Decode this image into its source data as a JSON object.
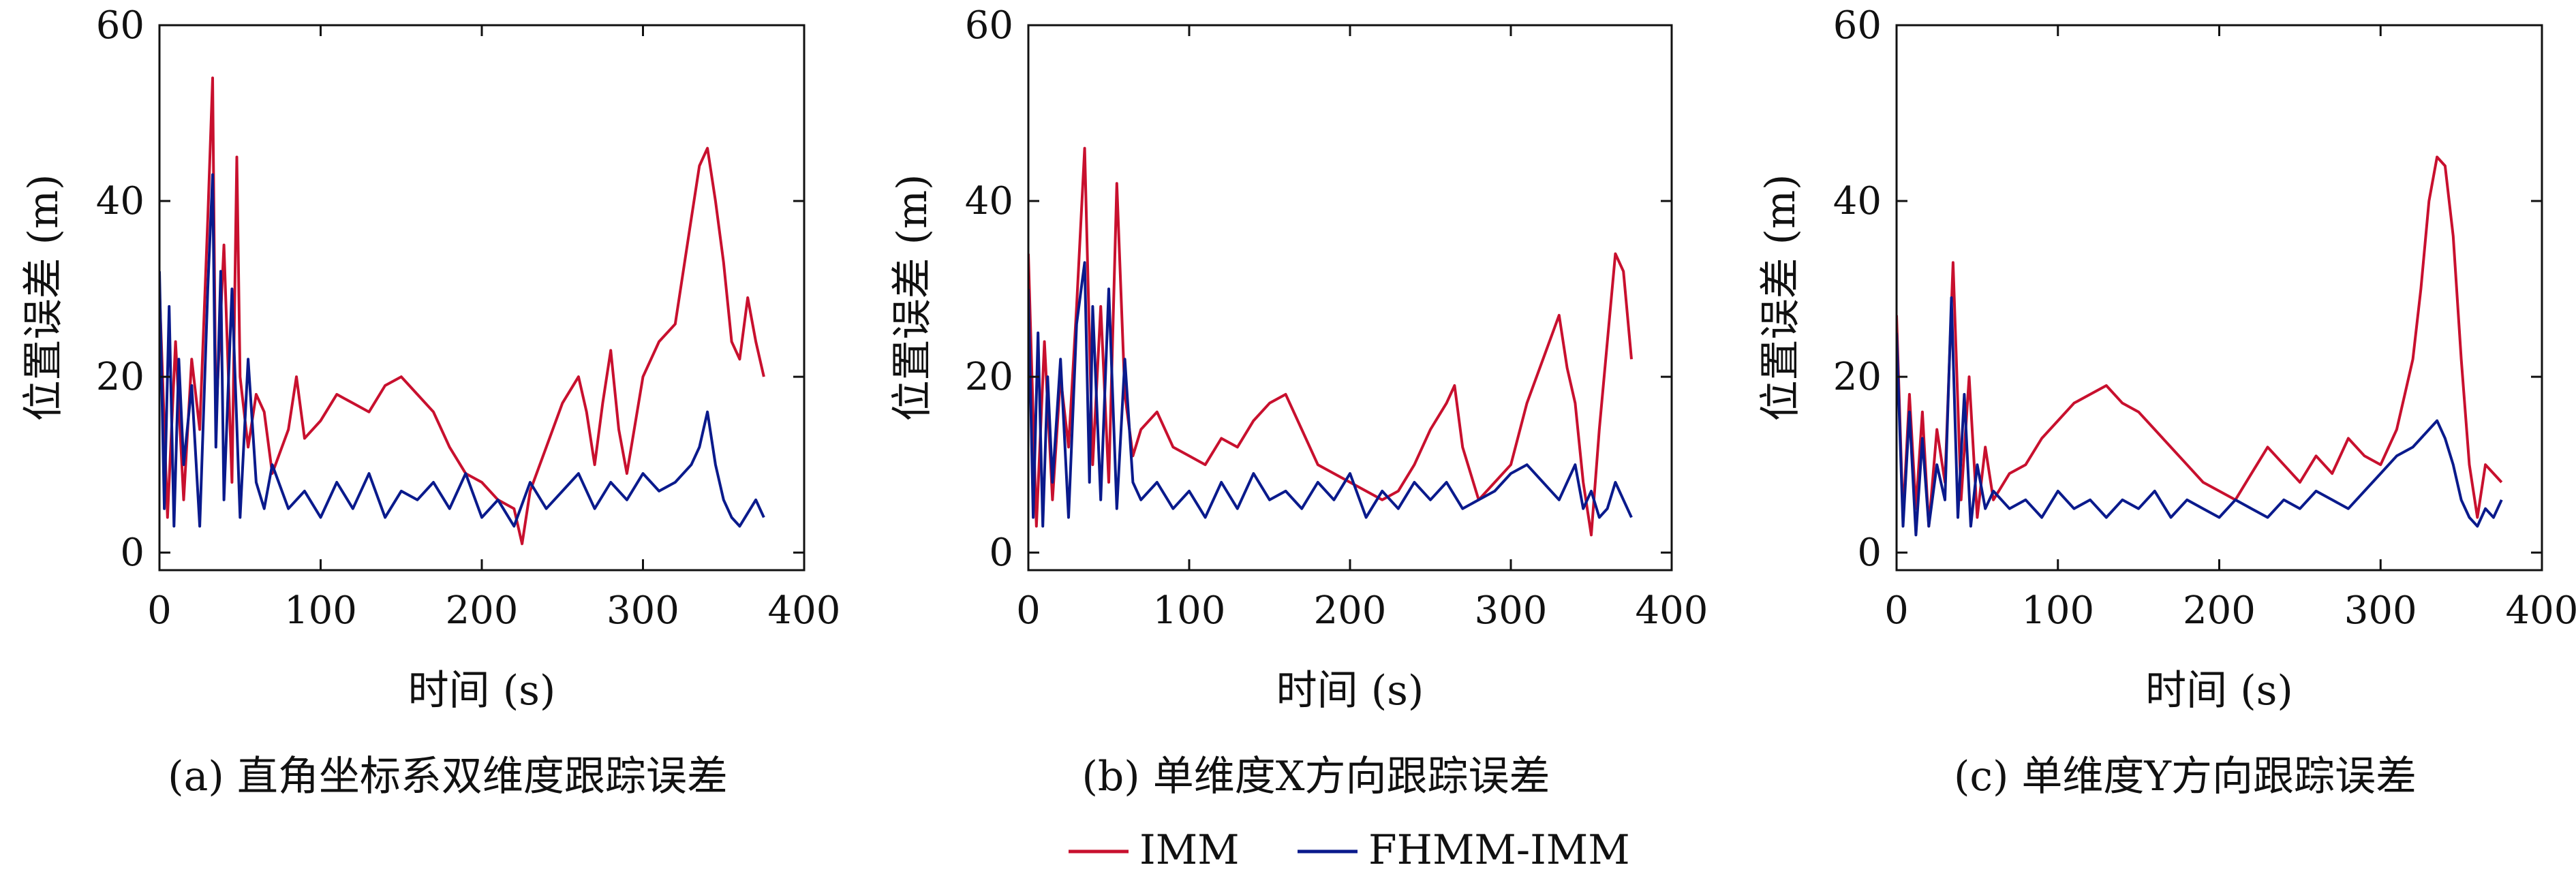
{
  "colors": {
    "IMM": "#c8102e",
    "FHMM-IMM": "#0a1a8c",
    "axis": "#111111"
  },
  "legend": {
    "placement": "bottom-center",
    "items": [
      {
        "name": "IMM",
        "color": "#c8102e"
      },
      {
        "name": "FHMM-IMM",
        "color": "#0a1a8c"
      }
    ]
  },
  "chart_data": [
    {
      "type": "line",
      "caption": "(a) 直角坐标系双维度跟踪误差",
      "xlabel": "时间 (s)",
      "ylabel": "位置误差 (m)",
      "xlim": [
        0,
        400
      ],
      "ylim": [
        -2,
        60
      ],
      "xticks": [
        0,
        100,
        200,
        300,
        400
      ],
      "yticks": [
        0,
        20,
        40,
        60
      ],
      "grid": false,
      "series": [
        {
          "name": "IMM",
          "x": [
            0,
            5,
            10,
            15,
            20,
            25,
            30,
            33,
            35,
            40,
            45,
            48,
            50,
            55,
            60,
            65,
            70,
            80,
            85,
            90,
            100,
            110,
            120,
            130,
            140,
            150,
            160,
            170,
            180,
            190,
            200,
            210,
            220,
            225,
            230,
            240,
            250,
            260,
            265,
            270,
            275,
            280,
            285,
            290,
            300,
            310,
            320,
            330,
            335,
            340,
            345,
            350,
            355,
            360,
            365,
            370,
            375
          ],
          "y": [
            30,
            4,
            24,
            6,
            22,
            14,
            38,
            54,
            15,
            35,
            8,
            45,
            20,
            12,
            18,
            16,
            9,
            14,
            20,
            13,
            15,
            18,
            17,
            16,
            19,
            20,
            18,
            16,
            12,
            9,
            8,
            6,
            5,
            1,
            7,
            12,
            17,
            20,
            16,
            10,
            17,
            23,
            14,
            9,
            20,
            24,
            26,
            38,
            44,
            46,
            40,
            33,
            24,
            22,
            29,
            24,
            20
          ]
        },
        {
          "name": "FHMM-IMM",
          "x": [
            0,
            3,
            6,
            9,
            12,
            15,
            20,
            25,
            30,
            33,
            35,
            38,
            40,
            45,
            50,
            55,
            60,
            65,
            70,
            80,
            90,
            100,
            110,
            120,
            130,
            140,
            150,
            160,
            170,
            180,
            190,
            200,
            210,
            220,
            230,
            240,
            250,
            260,
            270,
            280,
            290,
            300,
            310,
            320,
            330,
            335,
            340,
            345,
            350,
            355,
            360,
            370,
            375
          ],
          "y": [
            32,
            5,
            28,
            3,
            22,
            10,
            19,
            3,
            30,
            43,
            12,
            32,
            6,
            30,
            4,
            22,
            8,
            5,
            10,
            5,
            7,
            4,
            8,
            5,
            9,
            4,
            7,
            6,
            8,
            5,
            9,
            4,
            6,
            3,
            8,
            5,
            7,
            9,
            5,
            8,
            6,
            9,
            7,
            8,
            10,
            12,
            16,
            10,
            6,
            4,
            3,
            6,
            4
          ]
        }
      ]
    },
    {
      "type": "line",
      "caption": "(b) 单维度X方向跟踪误差",
      "xlabel": "时间 (s)",
      "ylabel": "位置误差 (m)",
      "xlim": [
        0,
        400
      ],
      "ylim": [
        -2,
        60
      ],
      "xticks": [
        0,
        100,
        200,
        300,
        400
      ],
      "yticks": [
        0,
        20,
        40,
        60
      ],
      "grid": false,
      "series": [
        {
          "name": "IMM",
          "x": [
            0,
            5,
            10,
            15,
            20,
            25,
            30,
            35,
            40,
            45,
            50,
            55,
            60,
            65,
            70,
            80,
            90,
            100,
            110,
            120,
            130,
            140,
            150,
            160,
            170,
            180,
            190,
            200,
            210,
            220,
            230,
            240,
            250,
            260,
            265,
            270,
            280,
            290,
            300,
            310,
            320,
            330,
            335,
            340,
            345,
            350,
            355,
            360,
            365,
            370,
            375
          ],
          "y": [
            34,
            3,
            24,
            6,
            20,
            12,
            28,
            46,
            10,
            28,
            8,
            42,
            18,
            11,
            14,
            16,
            12,
            11,
            10,
            13,
            12,
            15,
            17,
            18,
            14,
            10,
            9,
            8,
            7,
            6,
            7,
            10,
            14,
            17,
            19,
            12,
            6,
            8,
            10,
            17,
            22,
            27,
            21,
            17,
            8,
            2,
            14,
            24,
            34,
            32,
            22
          ]
        },
        {
          "name": "FHMM-IMM",
          "x": [
            0,
            3,
            6,
            9,
            12,
            15,
            20,
            25,
            30,
            35,
            38,
            40,
            45,
            50,
            55,
            60,
            65,
            70,
            80,
            90,
            100,
            110,
            120,
            130,
            140,
            150,
            160,
            170,
            180,
            190,
            200,
            210,
            220,
            230,
            240,
            250,
            260,
            270,
            280,
            290,
            300,
            310,
            320,
            330,
            340,
            345,
            350,
            355,
            360,
            365,
            370,
            375
          ],
          "y": [
            30,
            4,
            25,
            3,
            20,
            8,
            22,
            4,
            26,
            33,
            8,
            28,
            6,
            30,
            5,
            22,
            8,
            6,
            8,
            5,
            7,
            4,
            8,
            5,
            9,
            6,
            7,
            5,
            8,
            6,
            9,
            4,
            7,
            5,
            8,
            6,
            8,
            5,
            6,
            7,
            9,
            10,
            8,
            6,
            10,
            5,
            7,
            4,
            5,
            8,
            6,
            4
          ]
        }
      ]
    },
    {
      "type": "line",
      "caption": "(c) 单维度Y方向跟踪误差",
      "xlabel": "时间 (s)",
      "ylabel": "位置误差 (m)",
      "xlim": [
        0,
        400
      ],
      "ylim": [
        -2,
        60
      ],
      "xticks": [
        0,
        100,
        200,
        300,
        400
      ],
      "yticks": [
        0,
        20,
        40,
        60
      ],
      "grid": false,
      "series": [
        {
          "name": "IMM",
          "x": [
            0,
            4,
            8,
            12,
            16,
            20,
            25,
            30,
            35,
            40,
            45,
            50,
            55,
            60,
            70,
            80,
            90,
            100,
            110,
            120,
            130,
            140,
            150,
            160,
            170,
            180,
            190,
            200,
            210,
            220,
            230,
            240,
            250,
            260,
            270,
            280,
            290,
            300,
            310,
            315,
            320,
            325,
            330,
            335,
            340,
            345,
            350,
            355,
            360,
            365,
            370,
            375
          ],
          "y": [
            27,
            4,
            18,
            5,
            16,
            3,
            14,
            8,
            33,
            6,
            20,
            4,
            12,
            6,
            9,
            10,
            13,
            15,
            17,
            18,
            19,
            17,
            16,
            14,
            12,
            10,
            8,
            7,
            6,
            9,
            12,
            10,
            8,
            11,
            9,
            13,
            11,
            10,
            14,
            18,
            22,
            30,
            40,
            45,
            44,
            36,
            22,
            10,
            4,
            10,
            9,
            8
          ]
        },
        {
          "name": "FHMM-IMM",
          "x": [
            0,
            4,
            8,
            12,
            16,
            20,
            25,
            30,
            34,
            38,
            42,
            46,
            50,
            55,
            60,
            70,
            80,
            90,
            100,
            110,
            120,
            130,
            140,
            150,
            160,
            170,
            180,
            190,
            200,
            210,
            220,
            230,
            240,
            250,
            260,
            270,
            280,
            290,
            300,
            310,
            320,
            330,
            335,
            340,
            345,
            350,
            355,
            360,
            365,
            370,
            375
          ],
          "y": [
            25,
            3,
            16,
            2,
            13,
            3,
            10,
            6,
            29,
            4,
            18,
            3,
            10,
            5,
            7,
            5,
            6,
            4,
            7,
            5,
            6,
            4,
            6,
            5,
            7,
            4,
            6,
            5,
            4,
            6,
            5,
            4,
            6,
            5,
            7,
            6,
            5,
            7,
            9,
            11,
            12,
            14,
            15,
            13,
            10,
            6,
            4,
            3,
            5,
            4,
            6
          ]
        }
      ]
    }
  ]
}
